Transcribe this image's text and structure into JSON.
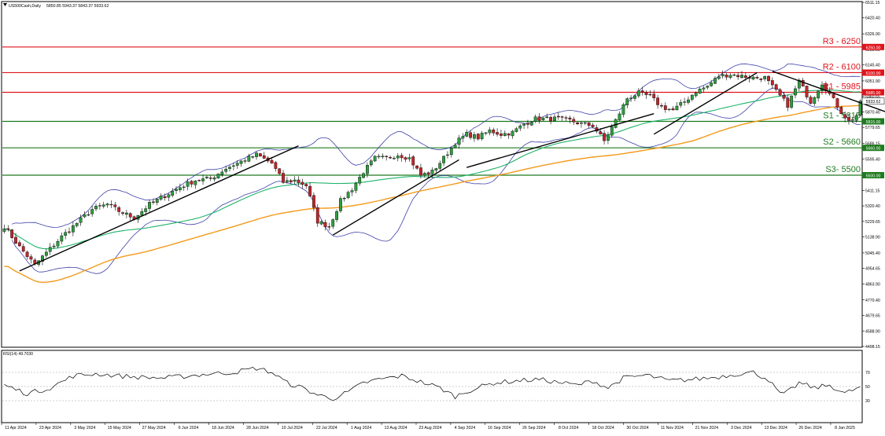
{
  "header": {
    "symbol": "US500Cash,Daily",
    "ohlc": "5850.85 5943.37 5843.37 5933.62"
  },
  "rsi_panel": {
    "label": "RSI(14) 49.7030"
  },
  "colors": {
    "bull": "#2e9e3e",
    "bear": "#c0262b",
    "bb": "#3f42a8",
    "ma_fast": "#1fb36b",
    "ma_slow": "#f39a1a",
    "resistance": "#e0141c",
    "support": "#1e7a1e",
    "trend": "#000000",
    "rsi": "#000000"
  },
  "chart_data": {
    "type": "candlestick",
    "y_axis_ticks": [
      "6511.15",
      "6420.40",
      "6326.90",
      "6235.65",
      "6145.40",
      "6051.90",
      "5960.65",
      "5870.40",
      "5779.65",
      "5686.15",
      "5595.40",
      "5504.65",
      "5411.15",
      "5320.40",
      "5229.65",
      "5138.90",
      "5045.40",
      "4954.65",
      "4863.90",
      "4770.40",
      "4679.65",
      "4588.90",
      "4498.15"
    ],
    "ylim": [
      4498.15,
      6511.15
    ],
    "x_axis_labels": [
      "11 Apr 2024",
      "23 Apr 2024",
      "3 May 2024",
      "15 May 2024",
      "27 May 2024",
      "6 Jun 2024",
      "18 Jun 2024",
      "28 Jun 2024",
      "10 Jul 2024",
      "22 Jul 2024",
      "1 Aug 2024",
      "13 Aug 2024",
      "23 Aug 2024",
      "4 Sep 2024",
      "16 Sep 2024",
      "26 Sep 2024",
      "8 Oct 2024",
      "18 Oct 2024",
      "30 Oct 2024",
      "11 Nov 2024",
      "21 Nov 2024",
      "3 Dec 2024",
      "13 Dec 2024",
      "26 Dec 2024",
      "8 Jan 2025"
    ],
    "levels": [
      {
        "name": "R3 - 6250",
        "value": 6250,
        "tag": "6250.00",
        "kind": "resistance"
      },
      {
        "name": "R2 - 6100",
        "value": 6100,
        "tag": "6100.00",
        "kind": "resistance"
      },
      {
        "name": "R1 - 5985",
        "value": 5985,
        "tag": "5985.00",
        "kind": "resistance"
      },
      {
        "name": "S1 - 5815",
        "value": 5815,
        "tag": "5815.00",
        "kind": "support"
      },
      {
        "name": "S2 - 5660",
        "value": 5660,
        "tag": "5660.00",
        "kind": "support"
      },
      {
        "name": "S3- 5500",
        "value": 5500,
        "tag": "5500.00",
        "kind": "support"
      }
    ],
    "current_price": {
      "value": 5933.62,
      "tag": "5933.62"
    },
    "rsi_ticks": [
      "70",
      "50",
      "30"
    ],
    "rsi_ylim": [
      0,
      100
    ],
    "rsi_levels": [
      70,
      50,
      30
    ],
    "anchors": [
      [
        0,
        5200
      ],
      [
        4,
        5080
      ],
      [
        8,
        4975
      ],
      [
        12,
        5070
      ],
      [
        15,
        5140
      ],
      [
        18,
        5200
      ],
      [
        23,
        5300
      ],
      [
        27,
        5330
      ],
      [
        30,
        5290
      ],
      [
        34,
        5250
      ],
      [
        38,
        5330
      ],
      [
        42,
        5380
      ],
      [
        46,
        5430
      ],
      [
        50,
        5470
      ],
      [
        54,
        5480
      ],
      [
        58,
        5540
      ],
      [
        62,
        5580
      ],
      [
        66,
        5620
      ],
      [
        70,
        5570
      ],
      [
        73,
        5460
      ],
      [
        76,
        5470
      ],
      [
        79,
        5440
      ],
      [
        82,
        5230
      ],
      [
        85,
        5200
      ],
      [
        88,
        5350
      ],
      [
        91,
        5420
      ],
      [
        94,
        5520
      ],
      [
        97,
        5600
      ],
      [
        100,
        5600
      ],
      [
        103,
        5620
      ],
      [
        106,
        5600
      ],
      [
        109,
        5500
      ],
      [
        112,
        5520
      ],
      [
        115,
        5600
      ],
      [
        118,
        5690
      ],
      [
        121,
        5740
      ],
      [
        124,
        5720
      ],
      [
        127,
        5760
      ],
      [
        130,
        5740
      ],
      [
        133,
        5750
      ],
      [
        136,
        5800
      ],
      [
        139,
        5830
      ],
      [
        142,
        5830
      ],
      [
        145,
        5830
      ],
      [
        148,
        5820
      ],
      [
        151,
        5800
      ],
      [
        154,
        5790
      ],
      [
        157,
        5700
      ],
      [
        160,
        5820
      ],
      [
        163,
        5950
      ],
      [
        166,
        5980
      ],
      [
        169,
        5960
      ],
      [
        172,
        5900
      ],
      [
        175,
        5880
      ],
      [
        178,
        5930
      ],
      [
        181,
        5990
      ],
      [
        184,
        6020
      ],
      [
        187,
        6080
      ],
      [
        190,
        6090
      ],
      [
        193,
        6080
      ],
      [
        196,
        6070
      ],
      [
        199,
        6070
      ],
      [
        202,
        5990
      ],
      [
        205,
        5910
      ],
      [
        208,
        6050
      ],
      [
        211,
        5930
      ],
      [
        214,
        6040
      ],
      [
        217,
        5940
      ],
      [
        219,
        5870
      ],
      [
        221,
        5815
      ],
      [
        223,
        5850
      ],
      [
        224,
        5934
      ]
    ],
    "trendlines": [
      {
        "from": [
          4,
          4940
        ],
        "to": [
          77,
          5672
        ]
      },
      {
        "from": [
          86,
          5150
        ],
        "to": [
          119,
          5590
        ]
      },
      {
        "from": [
          121,
          5545
        ],
        "to": [
          170,
          5860
        ]
      },
      {
        "from": [
          170,
          5740
        ],
        "to": [
          197,
          6100
        ]
      },
      {
        "from": [
          201,
          6108
        ],
        "to": [
          237,
          5820
        ]
      }
    ],
    "rsi_anchors": [
      [
        0,
        52
      ],
      [
        6,
        40
      ],
      [
        12,
        48
      ],
      [
        18,
        65
      ],
      [
        24,
        68
      ],
      [
        30,
        65
      ],
      [
        36,
        63
      ],
      [
        42,
        62
      ],
      [
        48,
        65
      ],
      [
        54,
        68
      ],
      [
        60,
        70
      ],
      [
        66,
        76
      ],
      [
        70,
        70
      ],
      [
        74,
        55
      ],
      [
        78,
        48
      ],
      [
        82,
        38
      ],
      [
        86,
        33
      ],
      [
        90,
        42
      ],
      [
        94,
        55
      ],
      [
        98,
        60
      ],
      [
        104,
        65
      ],
      [
        110,
        55
      ],
      [
        114,
        48
      ],
      [
        118,
        36
      ],
      [
        122,
        45
      ],
      [
        128,
        55
      ],
      [
        134,
        58
      ],
      [
        140,
        60
      ],
      [
        146,
        55
      ],
      [
        150,
        52
      ],
      [
        154,
        58
      ],
      [
        158,
        48
      ],
      [
        162,
        62
      ],
      [
        168,
        66
      ],
      [
        174,
        58
      ],
      [
        180,
        60
      ],
      [
        186,
        63
      ],
      [
        192,
        68
      ],
      [
        196,
        70
      ],
      [
        200,
        60
      ],
      [
        202,
        45
      ],
      [
        204,
        38
      ],
      [
        208,
        55
      ],
      [
        212,
        48
      ],
      [
        216,
        52
      ],
      [
        220,
        40
      ],
      [
        224,
        49.7
      ]
    ]
  }
}
